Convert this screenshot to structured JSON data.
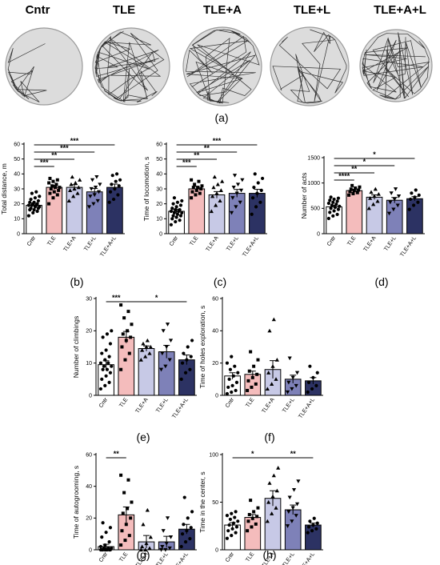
{
  "track_titles": [
    "Cntr",
    "TLE",
    "TLE+A",
    "TLE+L",
    "TLE+A+L"
  ],
  "track_caption": "(a)",
  "chart_data": [
    {
      "type": "bar",
      "letter": "(b)",
      "ylabel": "Total distance, m",
      "categories": [
        "Cntr",
        "TLE",
        "TLE+A",
        "TLE+L",
        "TLE+A+L"
      ],
      "values": [
        19,
        31,
        31,
        28,
        31
      ],
      "sem": [
        1.3,
        1.5,
        1.8,
        2.3,
        2.2
      ],
      "ylim": [
        0,
        60
      ],
      "yticks": [
        0,
        10,
        20,
        30,
        40,
        50,
        60
      ],
      "points": [
        [
          12,
          14,
          15,
          16,
          16,
          17,
          17,
          18,
          18,
          19,
          19,
          19,
          20,
          20,
          21,
          21,
          22,
          23,
          24,
          25,
          27,
          28
        ],
        [
          20,
          24,
          26,
          27,
          28,
          29,
          30,
          31,
          31,
          32,
          33,
          34,
          35,
          36,
          37
        ],
        [
          22,
          25,
          27,
          29,
          30,
          31,
          33,
          34,
          36,
          38
        ],
        [
          18,
          20,
          22,
          25,
          26,
          28,
          30,
          31,
          33,
          36,
          38
        ],
        [
          21,
          23,
          26,
          28,
          30,
          32,
          33,
          35,
          36,
          39,
          40
        ]
      ],
      "sig": [
        {
          "from": 0,
          "to": 1,
          "label": "***"
        },
        {
          "from": 0,
          "to": 2,
          "label": "**"
        },
        {
          "from": 0,
          "to": 3,
          "label": "***"
        },
        {
          "from": 0,
          "to": 4,
          "label": "***"
        }
      ]
    },
    {
      "type": "bar",
      "letter": "(c)",
      "ylabel": "Time of locomotion, s",
      "categories": [
        "Cntr",
        "TLE",
        "TLE+A",
        "TLE+L",
        "TLE+A+L"
      ],
      "values": [
        15,
        30,
        26,
        27,
        27
      ],
      "sem": [
        1.4,
        1.6,
        2.2,
        2.6,
        2.7
      ],
      "ylim": [
        0,
        60
      ],
      "yticks": [
        0,
        10,
        20,
        30,
        40,
        50,
        60
      ],
      "points": [
        [
          6,
          8,
          9,
          10,
          11,
          12,
          12,
          13,
          14,
          14,
          15,
          15,
          16,
          16,
          17,
          18,
          19,
          20,
          21,
          22,
          24
        ],
        [
          24,
          26,
          27,
          28,
          29,
          30,
          31,
          31,
          32,
          33,
          35,
          36
        ],
        [
          15,
          19,
          22,
          25,
          27,
          29,
          31,
          33,
          35,
          38
        ],
        [
          14,
          18,
          21,
          24,
          27,
          29,
          31,
          33,
          36,
          39
        ],
        [
          13,
          18,
          21,
          24,
          27,
          29,
          31,
          34,
          37,
          40
        ]
      ],
      "sig": [
        {
          "from": 0,
          "to": 1,
          "label": "***"
        },
        {
          "from": 0,
          "to": 2,
          "label": "**"
        },
        {
          "from": 0,
          "to": 3,
          "label": "**"
        },
        {
          "from": 0,
          "to": 4,
          "label": "***"
        }
      ]
    },
    {
      "type": "bar",
      "letter": "(d)",
      "ylabel": "Number of acts",
      "categories": [
        "Cntr",
        "TLE",
        "TLE+A",
        "TLE+L",
        "TLE+A+L"
      ],
      "values": [
        530,
        850,
        720,
        660,
        690
      ],
      "sem": [
        30,
        25,
        45,
        55,
        40
      ],
      "ylim": [
        0,
        1500
      ],
      "yticks": [
        0,
        500,
        1000,
        1500
      ],
      "points": [
        [
          300,
          350,
          380,
          420,
          450,
          480,
          500,
          520,
          540,
          560,
          580,
          600,
          620,
          640,
          660,
          680,
          700,
          720
        ],
        [
          760,
          790,
          810,
          830,
          850,
          860,
          880,
          900,
          920,
          950
        ],
        [
          500,
          580,
          640,
          700,
          740,
          780,
          820,
          880
        ],
        [
          400,
          480,
          560,
          620,
          680,
          740,
          800,
          880
        ],
        [
          480,
          560,
          620,
          680,
          720,
          760,
          800,
          860
        ]
      ],
      "sig": [
        {
          "from": 0,
          "to": 1,
          "label": "****"
        },
        {
          "from": 0,
          "to": 2,
          "label": "**"
        },
        {
          "from": 0,
          "to": 3,
          "label": "*"
        },
        {
          "from": 0,
          "to": 4,
          "label": "*"
        }
      ]
    },
    {
      "type": "bar",
      "letter": "(e)",
      "ylabel": "Number of climbings",
      "categories": [
        "Cntr",
        "TLE",
        "TLE+A",
        "TLE+L",
        "TLE+A+L"
      ],
      "values": [
        9.5,
        18,
        14.5,
        13.5,
        11
      ],
      "sem": [
        1.2,
        1.8,
        0.8,
        2.0,
        1.5
      ],
      "ylim": [
        0,
        30
      ],
      "yticks": [
        0,
        10,
        20,
        30
      ],
      "points": [
        [
          2,
          3,
          4,
          5,
          6,
          7,
          8,
          8,
          9,
          9,
          10,
          10,
          11,
          12,
          13,
          14,
          16,
          18,
          19,
          20
        ],
        [
          8,
          11,
          13,
          15,
          17,
          18,
          19,
          20,
          22,
          24,
          26,
          28
        ],
        [
          11,
          12,
          13,
          14,
          15,
          15,
          16,
          17
        ],
        [
          8,
          9,
          11,
          13,
          15,
          17,
          20,
          22
        ],
        [
          5,
          7,
          8,
          10,
          11,
          12,
          13,
          15,
          17
        ]
      ],
      "sig": [
        {
          "from": 0,
          "to": 1,
          "label": "***"
        },
        {
          "from": 1,
          "to": 4,
          "label": "*"
        }
      ]
    },
    {
      "type": "bar",
      "letter": "(f)",
      "ylabel": "Time of holes exploration, s",
      "categories": [
        "Cntr",
        "TLE",
        "TLE+A",
        "TLE+L",
        "TLE+A+L"
      ],
      "values": [
        12,
        13,
        16,
        10,
        9
      ],
      "sem": [
        2.0,
        2.0,
        5.5,
        2.5,
        2.0
      ],
      "ylim": [
        0,
        60
      ],
      "yticks": [
        0,
        20,
        40,
        60
      ],
      "points": [
        [
          1,
          2,
          3,
          5,
          6,
          8,
          10,
          12,
          14,
          16,
          18,
          20,
          24
        ],
        [
          3,
          5,
          7,
          9,
          11,
          13,
          15,
          18,
          22,
          27
        ],
        [
          4,
          7,
          10,
          14,
          18,
          22,
          40,
          47
        ],
        [
          2,
          4,
          6,
          8,
          11,
          14,
          23
        ],
        [
          2,
          4,
          6,
          8,
          11,
          14,
          18
        ]
      ],
      "sig": []
    },
    {
      "type": "bar",
      "letter": "(g)",
      "ylabel": "Time of autogrooming, s",
      "categories": [
        "Cntr",
        "TLE",
        "TLE+A",
        "TLE+L",
        "TLE+A+L"
      ],
      "values": [
        2,
        22,
        5,
        5,
        13
      ],
      "sem": [
        1.5,
        5.0,
        4.0,
        3.5,
        3.0
      ],
      "ylim": [
        0,
        60
      ],
      "yticks": [
        0,
        20,
        40,
        60
      ],
      "points": [
        [
          0,
          0,
          0,
          0,
          0,
          0,
          0,
          0,
          1,
          1,
          1,
          2,
          3,
          5,
          8,
          11,
          14,
          17
        ],
        [
          3,
          6,
          9,
          12,
          16,
          20,
          23,
          26,
          30,
          36,
          44,
          47
        ],
        [
          0,
          0,
          1,
          2,
          4,
          8,
          16,
          25
        ],
        [
          0,
          0,
          1,
          2,
          4,
          8,
          12,
          20
        ],
        [
          2,
          5,
          7,
          10,
          12,
          14,
          16,
          20,
          24,
          33
        ]
      ],
      "sig": [
        {
          "from": 0,
          "to": 1,
          "label": "**"
        }
      ]
    },
    {
      "type": "bar",
      "letter": "(h)",
      "ylabel": "Time in the center, s",
      "categories": [
        "Cntr",
        "TLE",
        "TLE+A",
        "TLE+L",
        "TLE+A+L"
      ],
      "values": [
        26,
        34,
        54,
        42,
        26
      ],
      "sem": [
        2.5,
        3.0,
        8.0,
        5.0,
        2.0
      ],
      "ylim": [
        0,
        100
      ],
      "yticks": [
        0,
        50,
        100
      ],
      "points": [
        [
          12,
          15,
          18,
          20,
          22,
          24,
          26,
          28,
          30,
          32,
          34,
          36,
          38,
          40
        ],
        [
          20,
          24,
          27,
          30,
          33,
          35,
          37,
          40,
          44,
          52
        ],
        [
          30,
          38,
          44,
          50,
          56,
          62,
          70,
          78,
          86
        ],
        [
          25,
          30,
          36,
          40,
          44,
          48,
          55,
          63,
          72
        ],
        [
          18,
          20,
          22,
          24,
          26,
          28,
          30,
          33
        ]
      ],
      "sig": [
        {
          "from": 0,
          "to": 2,
          "label": "*"
        },
        {
          "from": 2,
          "to": 4,
          "label": "**"
        }
      ]
    }
  ],
  "colors": {
    "bar_fills": [
      "#ffffff",
      "#f4bcbc",
      "#c7c9e6",
      "#7e81b8",
      "#2c3263"
    ],
    "bar_stroke": "#000000",
    "arena_fill": "#dcdcdc",
    "arena_stroke": "#9a9a9a",
    "track": "#111111"
  },
  "marker_shapes": [
    "circle",
    "square",
    "triangle-up",
    "triangle-down",
    "circle"
  ]
}
